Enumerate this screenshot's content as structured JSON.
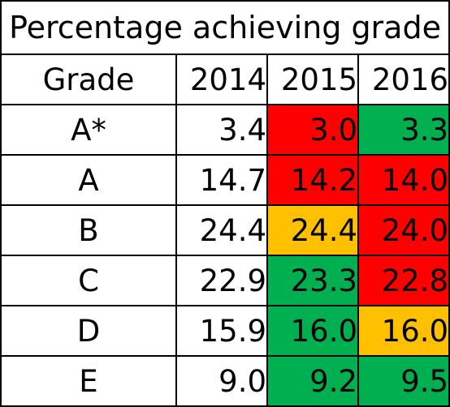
{
  "table": {
    "title": "Percentage achieving grade",
    "header": {
      "grade": "Grade",
      "years": [
        "2014",
        "2015",
        "2016"
      ]
    },
    "colors": {
      "red": "#ff0000",
      "green": "#00b050",
      "orange": "#ffc000"
    },
    "rows": [
      {
        "grade": "A*",
        "values": [
          "3.4",
          "3.0",
          "3.3"
        ],
        "fills": [
          "white",
          "red",
          "green"
        ]
      },
      {
        "grade": "A",
        "values": [
          "14.7",
          "14.2",
          "14.0"
        ],
        "fills": [
          "white",
          "red",
          "red"
        ]
      },
      {
        "grade": "B",
        "values": [
          "24.4",
          "24.4",
          "24.0"
        ],
        "fills": [
          "white",
          "orange",
          "red"
        ]
      },
      {
        "grade": "C",
        "values": [
          "22.9",
          "23.3",
          "22.8"
        ],
        "fills": [
          "white",
          "green",
          "red"
        ]
      },
      {
        "grade": "D",
        "values": [
          "15.9",
          "16.0",
          "16.0"
        ],
        "fills": [
          "white",
          "green",
          "orange"
        ]
      },
      {
        "grade": "E",
        "values": [
          "9.0",
          "9.2",
          "9.5"
        ],
        "fills": [
          "white",
          "green",
          "green"
        ]
      }
    ]
  }
}
